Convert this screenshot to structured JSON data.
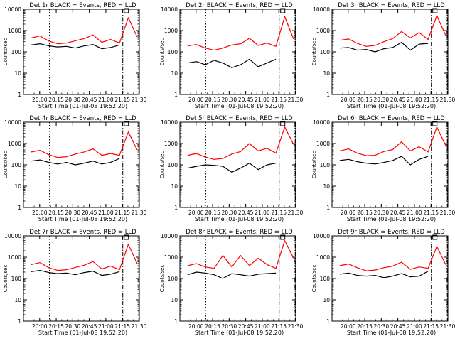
{
  "figure": {
    "background": "#ffffff",
    "frame_color": "#000000",
    "events_color": "#000000",
    "lld_color": "#ff0000"
  },
  "common": {
    "ylabel": "Counts/sec",
    "xlabel": "Start Time (01-Jul-08 19:52:20)",
    "yticks": [
      "10000",
      "1000",
      "100",
      "10",
      "1"
    ],
    "xticks": [
      "20:00",
      "20:15",
      "20:30",
      "20:45",
      "21:00",
      "21:15",
      "21:30"
    ]
  },
  "chart_data": [
    {
      "type": "line",
      "title": "Det 1r BLACK = Events, RED = LLD",
      "xlabel": "Start Time (01-Jul-08 19:52:20)",
      "ylabel": "Counts/sec",
      "xlim_minutes": [
        -7,
        98
      ],
      "ylim": [
        1,
        10000
      ],
      "yscale": "log",
      "x_minutes": [
        0,
        8,
        16,
        24,
        32,
        40,
        48,
        56,
        64,
        72,
        80,
        88,
        96
      ],
      "series": [
        {
          "name": "LLD",
          "color": "#ff0000",
          "values": [
            450,
            560,
            320,
            240,
            260,
            330,
            420,
            620,
            280,
            380,
            260,
            4000,
            500
          ]
        },
        {
          "name": "Events",
          "color": "#000000",
          "values": [
            210,
            240,
            190,
            170,
            180,
            150,
            190,
            220,
            140,
            160,
            210,
            null,
            null
          ]
        }
      ],
      "vlines_minutes": [
        16.5,
        83,
        97.5
      ]
    },
    {
      "type": "line",
      "title": "Det 2r BLACK = Events, RED = LLD",
      "xlabel": "Start Time (01-Jul-08 19:52:20)",
      "ylabel": "Counts/sec",
      "xlim_minutes": [
        -7,
        98
      ],
      "ylim": [
        1,
        10000
      ],
      "yscale": "log",
      "x_minutes": [
        0,
        8,
        16,
        24,
        32,
        40,
        48,
        56,
        64,
        72,
        80,
        88,
        96
      ],
      "series": [
        {
          "name": "LLD",
          "color": "#ff0000",
          "values": [
            190,
            220,
            150,
            120,
            150,
            210,
            240,
            430,
            200,
            260,
            180,
            4500,
            400
          ]
        },
        {
          "name": "Events",
          "color": "#000000",
          "values": [
            30,
            35,
            25,
            40,
            30,
            18,
            25,
            45,
            20,
            30,
            45,
            null,
            null
          ]
        }
      ],
      "vlines_minutes": [
        16.5,
        83,
        97.5
      ]
    },
    {
      "type": "line",
      "title": "Det 3r BLACK = Events, RED = LLD",
      "xlabel": "Start Time (01-Jul-08 19:52:20)",
      "ylabel": "Counts/sec",
      "xlim_minutes": [
        -7,
        98
      ],
      "ylim": [
        1,
        10000
      ],
      "yscale": "log",
      "x_minutes": [
        0,
        8,
        16,
        24,
        32,
        40,
        48,
        56,
        64,
        72,
        80,
        88,
        96
      ],
      "series": [
        {
          "name": "LLD",
          "color": "#ff0000",
          "values": [
            350,
            400,
            250,
            180,
            200,
            300,
            420,
            900,
            450,
            800,
            380,
            5000,
            600
          ]
        },
        {
          "name": "Events",
          "color": "#000000",
          "values": [
            150,
            160,
            120,
            130,
            100,
            140,
            160,
            280,
            120,
            230,
            250,
            null,
            null
          ]
        }
      ],
      "vlines_minutes": [
        16.5,
        83,
        97.5
      ]
    },
    {
      "type": "line",
      "title": "Det 4r BLACK = Events, RED = LLD",
      "xlabel": "Start Time (01-Jul-08 19:52:20)",
      "ylabel": "Counts/sec",
      "xlim_minutes": [
        -7,
        98
      ],
      "ylim": [
        1,
        10000
      ],
      "yscale": "log",
      "x_minutes": [
        0,
        8,
        16,
        24,
        32,
        40,
        48,
        56,
        64,
        72,
        80,
        88,
        96
      ],
      "series": [
        {
          "name": "LLD",
          "color": "#ff0000",
          "values": [
            400,
            480,
            300,
            220,
            240,
            320,
            400,
            560,
            280,
            340,
            280,
            3500,
            500
          ]
        },
        {
          "name": "Events",
          "color": "#000000",
          "values": [
            150,
            170,
            130,
            110,
            130,
            100,
            120,
            150,
            110,
            130,
            200,
            null,
            null
          ]
        }
      ],
      "vlines_minutes": [
        16.5,
        83,
        97.5
      ]
    },
    {
      "type": "line",
      "title": "Det 5r BLACK = Events, RED = LLD",
      "xlabel": "Start Time (01-Jul-08 19:52:20)",
      "ylabel": "Counts/sec",
      "xlim_minutes": [
        -7,
        98
      ],
      "ylim": [
        1,
        10000
      ],
      "yscale": "log",
      "x_minutes": [
        0,
        8,
        16,
        24,
        32,
        40,
        48,
        56,
        64,
        72,
        80,
        88,
        96
      ],
      "series": [
        {
          "name": "LLD",
          "color": "#ff0000",
          "values": [
            280,
            340,
            230,
            180,
            200,
            320,
            420,
            1000,
            450,
            600,
            350,
            6000,
            900
          ]
        },
        {
          "name": "Events",
          "color": "#000000",
          "values": [
            70,
            85,
            100,
            95,
            85,
            45,
            70,
            120,
            60,
            100,
            120,
            null,
            null
          ]
        }
      ],
      "vlines_minutes": [
        16.5,
        83,
        97.5
      ]
    },
    {
      "type": "line",
      "title": "Det 6r BLACK = Events, RED = LLD",
      "xlabel": "Start Time (01-Jul-08 19:52:20)",
      "ylabel": "Counts/sec",
      "xlim_minutes": [
        -7,
        98
      ],
      "ylim": [
        1,
        10000
      ],
      "yscale": "log",
      "x_minutes": [
        0,
        8,
        16,
        24,
        32,
        40,
        48,
        56,
        64,
        72,
        80,
        88,
        96
      ],
      "series": [
        {
          "name": "LLD",
          "color": "#ff0000",
          "values": [
            450,
            560,
            350,
            270,
            280,
            420,
            520,
            1200,
            450,
            700,
            400,
            6000,
            800
          ]
        },
        {
          "name": "Events",
          "color": "#000000",
          "values": [
            160,
            180,
            140,
            120,
            110,
            130,
            160,
            250,
            100,
            180,
            250,
            null,
            null
          ]
        }
      ],
      "vlines_minutes": [
        16.5,
        83,
        97.5
      ]
    },
    {
      "type": "line",
      "title": "Det 7r BLACK = Events, RED = LLD",
      "xlabel": "Start Time (01-Jul-08 19:52:20)",
      "ylabel": "Counts/sec",
      "xlim_minutes": [
        -7,
        98
      ],
      "ylim": [
        1,
        10000
      ],
      "yscale": "log",
      "x_minutes": [
        0,
        8,
        16,
        24,
        32,
        40,
        48,
        56,
        64,
        72,
        80,
        88,
        96
      ],
      "series": [
        {
          "name": "LLD",
          "color": "#ff0000",
          "values": [
            450,
            560,
            320,
            240,
            260,
            330,
            420,
            620,
            280,
            380,
            260,
            4000,
            500
          ]
        },
        {
          "name": "Events",
          "color": "#000000",
          "values": [
            210,
            240,
            190,
            170,
            180,
            150,
            190,
            220,
            140,
            160,
            210,
            null,
            null
          ]
        }
      ],
      "vlines_minutes": [
        16.5,
        83,
        97.5
      ]
    },
    {
      "type": "line",
      "title": "Det 8r BLACK = Events, RED = LLD",
      "xlabel": "Start Time (01-Jul-08 19:52:20)",
      "ylabel": "Counts/sec",
      "xlim_minutes": [
        -7,
        98
      ],
      "ylim": [
        1,
        10000
      ],
      "yscale": "log",
      "x_minutes": [
        0,
        8,
        16,
        24,
        32,
        40,
        48,
        56,
        64,
        72,
        80,
        88,
        96
      ],
      "series": [
        {
          "name": "LLD",
          "color": "#ff0000",
          "values": [
            400,
            500,
            350,
            300,
            1200,
            350,
            1200,
            400,
            900,
            450,
            300,
            6000,
            900
          ]
        },
        {
          "name": "Events",
          "color": "#000000",
          "values": [
            150,
            200,
            180,
            150,
            100,
            170,
            150,
            130,
            160,
            170,
            180,
            null,
            null
          ]
        }
      ],
      "vlines_minutes": [
        16.5,
        83,
        97.5
      ]
    },
    {
      "type": "line",
      "title": "Det 9r BLACK = Events, RED = LLD",
      "xlabel": "Start Time (01-Jul-08 19:52:20)",
      "ylabel": "Counts/sec",
      "xlim_minutes": [
        -7,
        98
      ],
      "ylim": [
        1,
        10000
      ],
      "yscale": "log",
      "x_minutes": [
        0,
        8,
        16,
        24,
        32,
        40,
        48,
        56,
        64,
        72,
        80,
        88,
        96
      ],
      "series": [
        {
          "name": "LLD",
          "color": "#ff0000",
          "values": [
            400,
            480,
            320,
            230,
            250,
            320,
            380,
            580,
            270,
            350,
            300,
            3200,
            450
          ]
        },
        {
          "name": "Events",
          "color": "#000000",
          "values": [
            160,
            180,
            140,
            130,
            140,
            110,
            130,
            170,
            120,
            130,
            220,
            null,
            null
          ]
        }
      ],
      "vlines_minutes": [
        16.5,
        83,
        97.5
      ]
    }
  ]
}
